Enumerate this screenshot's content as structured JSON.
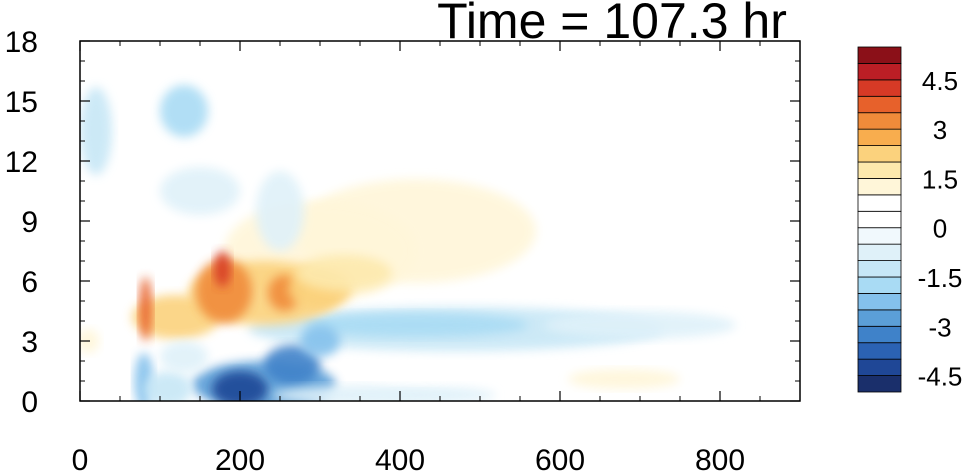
{
  "chart_data": {
    "type": "heatmap",
    "title": "Time = 107.3 hr",
    "xlabel": "",
    "ylabel": "",
    "xlim": [
      0,
      900
    ],
    "ylim": [
      0,
      18
    ],
    "x_ticks": [
      0,
      200,
      400,
      600,
      800
    ],
    "y_ticks": [
      0,
      3,
      6,
      9,
      12,
      15,
      18
    ],
    "grid": false,
    "colorbar": {
      "placement": "right",
      "levels": [
        -5.0,
        -4.5,
        -4.0,
        -3.5,
        -3.0,
        -2.5,
        -2.0,
        -1.5,
        -1.0,
        -0.5,
        0,
        0.5,
        1.0,
        1.5,
        2.0,
        2.5,
        3.0,
        3.5,
        4.0,
        4.5,
        5.0
      ],
      "tick_labels": [
        "4.5",
        "3",
        "1.5",
        "0",
        "-1.5",
        "-3",
        "-4.5"
      ],
      "colors": [
        "#1a2f6b",
        "#1f4796",
        "#2b62b3",
        "#3f82c9",
        "#5b9fd8",
        "#84c1ec",
        "#a9dbf4",
        "#c7e7f6",
        "#dff1f9",
        "#f1f9fd",
        "#ffffff",
        "#ffffff",
        "#fff6d9",
        "#fde9ad",
        "#fbd27d",
        "#f8ad4e",
        "#f08b3a",
        "#e7612b",
        "#d63a26",
        "#bb1e25",
        "#8b1018"
      ]
    },
    "features": [
      {
        "x": 85,
        "y": 4.2,
        "value": 3.0
      },
      {
        "x": 180,
        "y": 5.2,
        "value": 4.2
      },
      {
        "x": 250,
        "y": 5.6,
        "value": 3.2
      },
      {
        "x": 200,
        "y": 0.6,
        "value": -4.2
      },
      {
        "x": 110,
        "y": 0.8,
        "value": -2.5
      },
      {
        "x": 450,
        "y": 3.5,
        "value": -1.5
      },
      {
        "x": 130,
        "y": 14.5,
        "value": -1.5
      },
      {
        "x": 350,
        "y": 8.5,
        "value": 1.2
      }
    ]
  }
}
